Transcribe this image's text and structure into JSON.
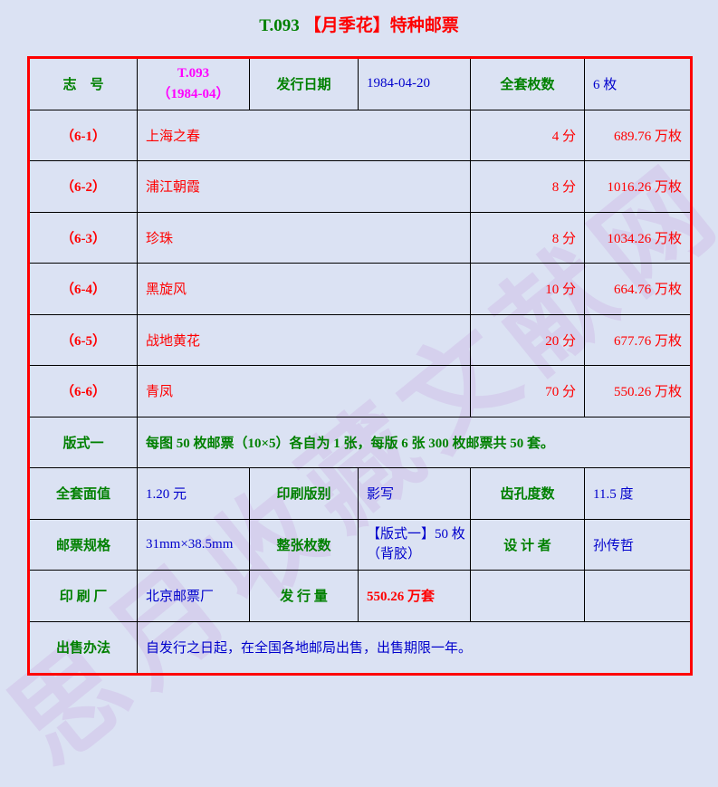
{
  "title": {
    "catalog_no": "T.093",
    "name": "【月季花】特种邮票"
  },
  "watermark": {
    "text": "思月收藏文献网"
  },
  "info_row": {
    "catalog_label": "志　号",
    "catalog_no": "T.093",
    "catalog_no_paren": "（1984-04）",
    "issue_date_label": "发行日期",
    "issue_date": "1984-04-20",
    "set_count_label": "全套枚数",
    "set_count": "6 枚"
  },
  "stamps": [
    {
      "no": "（6-1）",
      "name": "上海之春",
      "denom": "4 分",
      "qty": "689.76 万枚"
    },
    {
      "no": "（6-2）",
      "name": "浦江朝霞",
      "denom": "8 分",
      "qty": "1016.26 万枚"
    },
    {
      "no": "（6-3）",
      "name": "珍珠",
      "denom": "8 分",
      "qty": "1034.26 万枚"
    },
    {
      "no": "（6-4）",
      "name": "黑旋风",
      "denom": "10 分",
      "qty": "664.76 万枚"
    },
    {
      "no": "（6-5）",
      "name": "战地黄花",
      "denom": "20 分",
      "qty": "677.76 万枚"
    },
    {
      "no": "（6-6）",
      "name": "青凤",
      "denom": "70 分",
      "qty": "550.26 万枚"
    }
  ],
  "banshi": {
    "label": "版式一",
    "content": "每图 50 枚邮票（10×5）各自为 1 张，每版 6 张 300 枚邮票共 50 套。"
  },
  "specs": {
    "face_value_label": "全套面值",
    "face_value": "1.20 元",
    "print_type_label": "印刷版别",
    "print_type": "影写",
    "perforation_label": "齿孔度数",
    "perforation": "11.5 度",
    "stamp_size_label": "邮票规格",
    "stamp_size": "31mm×38.5mm",
    "sheet_count_label": "整张枚数",
    "sheet_count_line1": "【版式一】50 枚",
    "sheet_count_line2": "（背胶）",
    "designer_label": "设 计 者",
    "designer": "孙传哲",
    "printer_label": "印 刷 厂",
    "printer": "北京邮票厂",
    "issue_qty_label": "发 行 量",
    "issue_qty": "550.26 万套"
  },
  "sale": {
    "label": "出售办法",
    "content": "自发行之日起，在全国各地邮局出售，出售期限一年。"
  },
  "colors": {
    "background": "#dbe2f3",
    "outer_border_red": "#ff0000",
    "inner_border_black": "#000000",
    "label_green": "#008000",
    "value_blue": "#0000cc",
    "stamp_red": "#ff0000",
    "catalog_magenta": "#ff00ff",
    "watermark_purple": "#d5d0ed"
  }
}
